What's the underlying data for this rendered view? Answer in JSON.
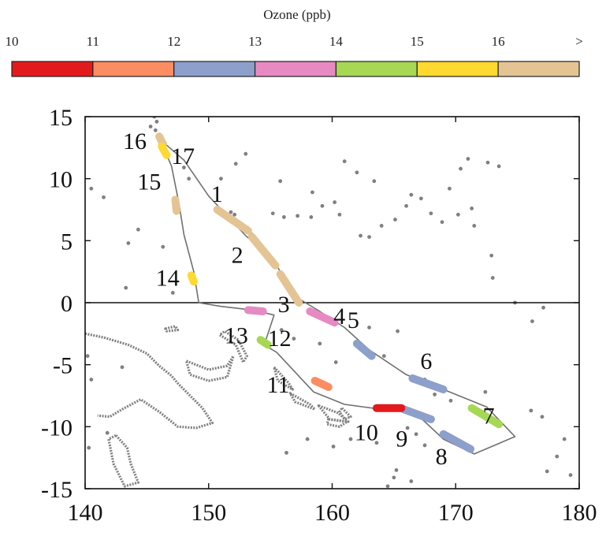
{
  "chart_data": {
    "type": "scatter",
    "colorbar": {
      "title": "Ozone (ppb)",
      "tick_labels": [
        "10",
        "11",
        "12",
        "13",
        "14",
        "15",
        "16",
        ">"
      ],
      "bins": [
        {
          "range": "10-11",
          "color": "#e31a1c"
        },
        {
          "range": "11-12",
          "color": "#fc8d62"
        },
        {
          "range": "12-13",
          "color": "#8da0cb"
        },
        {
          "range": "13-14",
          "color": "#e78ac3"
        },
        {
          "range": "14-15",
          "color": "#a6d854"
        },
        {
          "range": "15-16",
          "color": "#ffd92f"
        },
        {
          "range": ">16",
          "color": "#e5c494"
        }
      ]
    },
    "x_ticks": [
      "140",
      "150",
      "160",
      "170",
      "180"
    ],
    "y_ticks": [
      "15",
      "10",
      "5",
      "0",
      "-5",
      "-10",
      "-15"
    ],
    "xlim": [
      140,
      180
    ],
    "ylim": [
      -15,
      15
    ],
    "grid": false,
    "track": [
      [
        145.9,
        13.3
      ],
      [
        148.0,
        11.5
      ],
      [
        150.0,
        8.6
      ],
      [
        153.0,
        5.4
      ],
      [
        155.2,
        3.5
      ],
      [
        157.0,
        0.5
      ],
      [
        159.0,
        -0.7
      ],
      [
        161.0,
        -2.0
      ],
      [
        163.0,
        -3.8
      ],
      [
        166.0,
        -5.8
      ],
      [
        170.0,
        -7.4
      ],
      [
        172.5,
        -8.4
      ],
      [
        174.8,
        -10.8
      ],
      [
        171.5,
        -12.2
      ],
      [
        169.0,
        -11.0
      ],
      [
        167.5,
        -9.6
      ],
      [
        166.3,
        -8.6
      ],
      [
        164.0,
        -8.6
      ],
      [
        161.0,
        -8.2
      ],
      [
        158.5,
        -7.2
      ],
      [
        157.0,
        -5.6
      ],
      [
        155.5,
        -4.0
      ],
      [
        154.5,
        -3.4
      ],
      [
        155.3,
        -1.0
      ],
      [
        153.6,
        -0.6
      ],
      [
        151.0,
        -0.3
      ],
      [
        149.2,
        0.0
      ],
      [
        148.8,
        2.5
      ],
      [
        148.0,
        5.5
      ],
      [
        147.6,
        8.0
      ],
      [
        147.0,
        11.0
      ],
      [
        146.1,
        13.1
      ]
    ],
    "segments": [
      {
        "label": "1",
        "points": [
          [
            150.7,
            7.5
          ],
          [
            153.2,
            5.8
          ]
        ],
        "ozone_bin": ">16"
      },
      {
        "label": "2",
        "points": [
          [
            153.5,
            5.3
          ],
          [
            155.4,
            3.0
          ]
        ],
        "ozone_bin": ">16"
      },
      {
        "label": "3",
        "points": [
          [
            155.8,
            2.3
          ],
          [
            157.3,
            0.0
          ]
        ],
        "ozone_bin": ">16"
      },
      {
        "label": "4",
        "points": [
          [
            158.2,
            -0.7
          ],
          [
            160.2,
            -1.6
          ]
        ],
        "ozone_bin": "13-14"
      },
      {
        "label": "5",
        "points": [
          [
            162.0,
            -3.3
          ],
          [
            163.2,
            -4.3
          ]
        ],
        "ozone_bin": "12-13"
      },
      {
        "label": "6",
        "points": [
          [
            166.5,
            -6.1
          ],
          [
            169.0,
            -7.0
          ]
        ],
        "ozone_bin": "12-13"
      },
      {
        "label": "7",
        "points": [
          [
            171.3,
            -8.5
          ],
          [
            173.5,
            -9.8
          ]
        ],
        "ozone_bin": "14-15"
      },
      {
        "label": "8",
        "points": [
          [
            169.0,
            -10.6
          ],
          [
            171.2,
            -11.8
          ]
        ],
        "ozone_bin": "12-13"
      },
      {
        "label": "9",
        "points": [
          [
            165.8,
            -8.6
          ],
          [
            168.0,
            -9.4
          ]
        ],
        "ozone_bin": "12-13"
      },
      {
        "label": "10",
        "points": [
          [
            163.6,
            -8.5
          ],
          [
            165.6,
            -8.5
          ]
        ],
        "ozone_bin": "10-11"
      },
      {
        "label": "11",
        "points": [
          [
            158.6,
            -6.3
          ],
          [
            159.7,
            -6.8
          ]
        ],
        "ozone_bin": "11-12"
      },
      {
        "label": "12",
        "points": [
          [
            154.2,
            -3.0
          ],
          [
            154.8,
            -3.4
          ]
        ],
        "ozone_bin": "14-15"
      },
      {
        "label": "13",
        "points": [
          [
            153.2,
            -0.6
          ],
          [
            154.4,
            -0.7
          ]
        ],
        "ozone_bin": "13-14"
      },
      {
        "label": "14",
        "points": [
          [
            148.6,
            2.2
          ],
          [
            148.8,
            1.7
          ]
        ],
        "ozone_bin": "15-16"
      },
      {
        "label": "15",
        "points": [
          [
            147.3,
            8.3
          ],
          [
            147.4,
            7.4
          ]
        ],
        "ozone_bin": ">16"
      },
      {
        "label": "16",
        "points": [
          [
            146.0,
            13.4
          ],
          [
            146.3,
            12.8
          ]
        ],
        "ozone_bin": ">16"
      },
      {
        "label": "17",
        "points": [
          [
            146.2,
            12.6
          ],
          [
            146.6,
            11.9
          ]
        ],
        "ozone_bin": "15-16"
      }
    ],
    "coastlines": [
      {
        "closed": false,
        "points": [
          [
            140,
            -2.5
          ],
          [
            141.5,
            -2.8
          ],
          [
            143.5,
            -3.4
          ],
          [
            145,
            -4.1
          ],
          [
            146,
            -5.1
          ],
          [
            147,
            -5.9
          ],
          [
            147.5,
            -6.5
          ],
          [
            148.5,
            -7.5
          ],
          [
            149.5,
            -8.5
          ],
          [
            150.3,
            -9.7
          ],
          [
            149.0,
            -10.1
          ],
          [
            147.5,
            -10.0
          ],
          [
            146.0,
            -8.8
          ],
          [
            144.5,
            -7.8
          ],
          [
            143.0,
            -8.6
          ],
          [
            142.0,
            -9.2
          ],
          [
            141.0,
            -9.1
          ]
        ]
      },
      {
        "closed": true,
        "points": [
          [
            148.2,
            -4.7
          ],
          [
            150.0,
            -5.4
          ],
          [
            151.5,
            -5.1
          ],
          [
            152.0,
            -4.3
          ],
          [
            151.5,
            -6.0
          ],
          [
            150.0,
            -6.3
          ],
          [
            148.5,
            -5.8
          ]
        ]
      },
      {
        "closed": true,
        "points": [
          [
            150.9,
            -2.6
          ],
          [
            152.2,
            -3.4
          ],
          [
            152.8,
            -4.8
          ],
          [
            153.1,
            -4.3
          ],
          [
            152.4,
            -3.0
          ],
          [
            151.3,
            -2.3
          ]
        ]
      },
      {
        "closed": true,
        "points": [
          [
            146.5,
            -2.1
          ],
          [
            147.3,
            -1.9
          ],
          [
            147.5,
            -2.2
          ],
          [
            146.6,
            -2.3
          ]
        ]
      },
      {
        "closed": true,
        "points": [
          [
            155.3,
            -5.2
          ],
          [
            156.5,
            -6.5
          ],
          [
            156.8,
            -7.0
          ],
          [
            155.6,
            -6.3
          ]
        ]
      },
      {
        "closed": true,
        "points": [
          [
            156.6,
            -7.3
          ],
          [
            158.2,
            -8.2
          ],
          [
            158.6,
            -8.6
          ],
          [
            157.0,
            -8.0
          ]
        ]
      },
      {
        "closed": true,
        "points": [
          [
            158.9,
            -8.3
          ],
          [
            160.5,
            -8.9
          ],
          [
            161.3,
            -9.6
          ],
          [
            159.8,
            -9.4
          ]
        ]
      },
      {
        "closed": true,
        "points": [
          [
            159.7,
            -9.4
          ],
          [
            161.2,
            -9.6
          ],
          [
            160.6,
            -10.0
          ],
          [
            159.6,
            -9.8
          ]
        ]
      },
      {
        "closed": true,
        "points": [
          [
            160.8,
            -8.5
          ],
          [
            161.5,
            -9.2
          ],
          [
            161.0,
            -9.4
          ],
          [
            160.6,
            -8.8
          ]
        ]
      },
      {
        "closed": true,
        "points": [
          [
            142.5,
            -10.7
          ],
          [
            143.4,
            -11.7
          ],
          [
            143.7,
            -13.0
          ],
          [
            144.3,
            -14.5
          ],
          [
            143.2,
            -14.8
          ],
          [
            142.3,
            -13.0
          ],
          [
            141.9,
            -11.0
          ]
        ]
      }
    ],
    "island_dots": [
      [
        145.3,
        14.2
      ],
      [
        145.6,
        15.0
      ],
      [
        145.7,
        13.9
      ],
      [
        145.8,
        14.6
      ],
      [
        148.0,
        10.9
      ],
      [
        148.4,
        10.0
      ],
      [
        140.5,
        9.2
      ],
      [
        141.5,
        8.5
      ],
      [
        151.8,
        7.3
      ],
      [
        152.1,
        7.1
      ],
      [
        153.5,
        5.5
      ],
      [
        155.2,
        7.2
      ],
      [
        156.1,
        6.9
      ],
      [
        157.2,
        7.0
      ],
      [
        158.3,
        6.9
      ],
      [
        160.6,
        7.1
      ],
      [
        162.3,
        5.4
      ],
      [
        163.0,
        5.3
      ],
      [
        164.0,
        6.2
      ],
      [
        165.1,
        6.7
      ],
      [
        166.0,
        7.8
      ],
      [
        166.4,
        8.7
      ],
      [
        167.2,
        8.4
      ],
      [
        168.0,
        7.2
      ],
      [
        168.9,
        6.5
      ],
      [
        170.2,
        7.1
      ],
      [
        171.3,
        7.6
      ],
      [
        171.5,
        6.2
      ],
      [
        172.9,
        3.8
      ],
      [
        173.0,
        2.0
      ],
      [
        174.8,
        0.0
      ],
      [
        176.2,
        -1.5
      ],
      [
        177.1,
        -0.4
      ],
      [
        172.6,
        11.3
      ],
      [
        173.5,
        11.0
      ],
      [
        169.5,
        9.2
      ],
      [
        170.4,
        10.8
      ],
      [
        171.0,
        11.6
      ],
      [
        163.4,
        9.8
      ],
      [
        162.0,
        10.5
      ],
      [
        161.0,
        11.4
      ],
      [
        151.0,
        10.0
      ],
      [
        152.2,
        11.2
      ],
      [
        153.0,
        12.0
      ],
      [
        155.8,
        9.8
      ],
      [
        158.4,
        8.9
      ],
      [
        159.2,
        7.8
      ],
      [
        160.2,
        8.1
      ],
      [
        143.5,
        4.8
      ],
      [
        144.3,
        5.9
      ],
      [
        146.3,
        4.5
      ],
      [
        143.3,
        1.2
      ],
      [
        147.1,
        0.8
      ],
      [
        155.9,
        -2.2
      ],
      [
        156.9,
        -2.9
      ],
      [
        159.0,
        -3.3
      ],
      [
        160.3,
        -4.8
      ],
      [
        163.0,
        -2.0
      ],
      [
        165.3,
        -2.3
      ],
      [
        164.2,
        -4.3
      ],
      [
        167.5,
        -6.2
      ],
      [
        168.3,
        -7.4
      ],
      [
        169.6,
        -7.9
      ],
      [
        172.4,
        -7.2
      ],
      [
        176.1,
        -8.7
      ],
      [
        177.0,
        -9.2
      ],
      [
        178.8,
        -11.0
      ],
      [
        178.2,
        -12.4
      ],
      [
        179.3,
        -13.9
      ],
      [
        177.4,
        -13.6
      ],
      [
        166.1,
        -10.1
      ],
      [
        166.8,
        -10.6
      ],
      [
        167.5,
        -11.5
      ],
      [
        165.2,
        -13.5
      ],
      [
        164.5,
        -14.8
      ],
      [
        165.0,
        -14.1
      ],
      [
        166.4,
        -14.4
      ],
      [
        163.6,
        -11.3
      ],
      [
        161.5,
        -11.0
      ],
      [
        160.1,
        -11.6
      ],
      [
        158.0,
        -11.0
      ],
      [
        156.3,
        -12.1
      ],
      [
        143.0,
        -5.2
      ],
      [
        140.5,
        -6.2
      ],
      [
        140.2,
        -4.3
      ],
      [
        141.8,
        -10.5
      ],
      [
        140.3,
        -11.7
      ]
    ]
  }
}
